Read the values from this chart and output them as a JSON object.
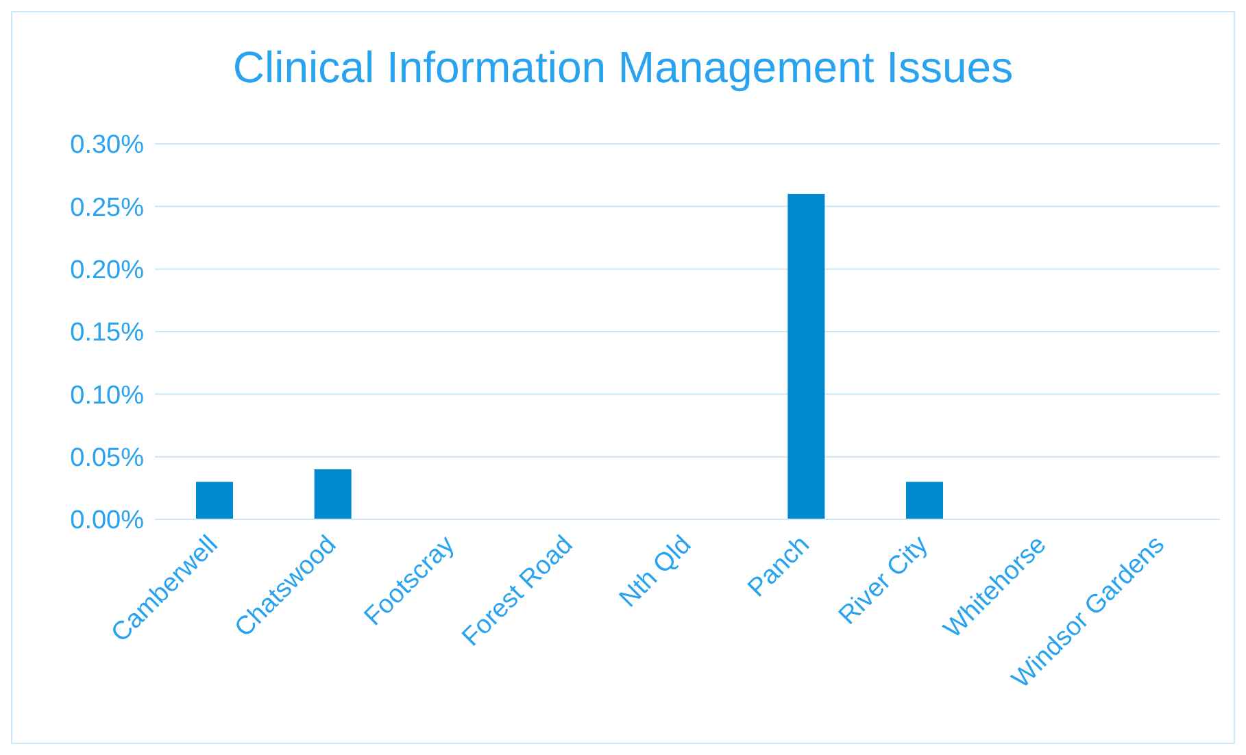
{
  "chart_data": {
    "type": "bar",
    "title": "Clinical Information Management Issues",
    "categories": [
      "Camberwell",
      "Chatswood",
      "Footscray",
      "Forest Road",
      "Nth Qld",
      "Panch",
      "River City",
      "Whitehorse",
      "Windsor Gardens"
    ],
    "values": [
      0.03,
      0.04,
      0,
      0,
      0,
      0.26,
      0.03,
      0,
      0
    ],
    "color": "#0089cf",
    "ylim": [
      0,
      0.3
    ],
    "yticks": [
      {
        "value": 0,
        "label": "0.00%"
      },
      {
        "value": 0.05,
        "label": "0.05%"
      },
      {
        "value": 0.1,
        "label": "0.10%"
      },
      {
        "value": 0.15,
        "label": "0.15%"
      },
      {
        "value": 0.2,
        "label": "0.20%"
      },
      {
        "value": 0.25,
        "label": "0.25%"
      },
      {
        "value": 0.3,
        "label": "0.30%"
      }
    ],
    "grid": "y",
    "legend": false
  }
}
